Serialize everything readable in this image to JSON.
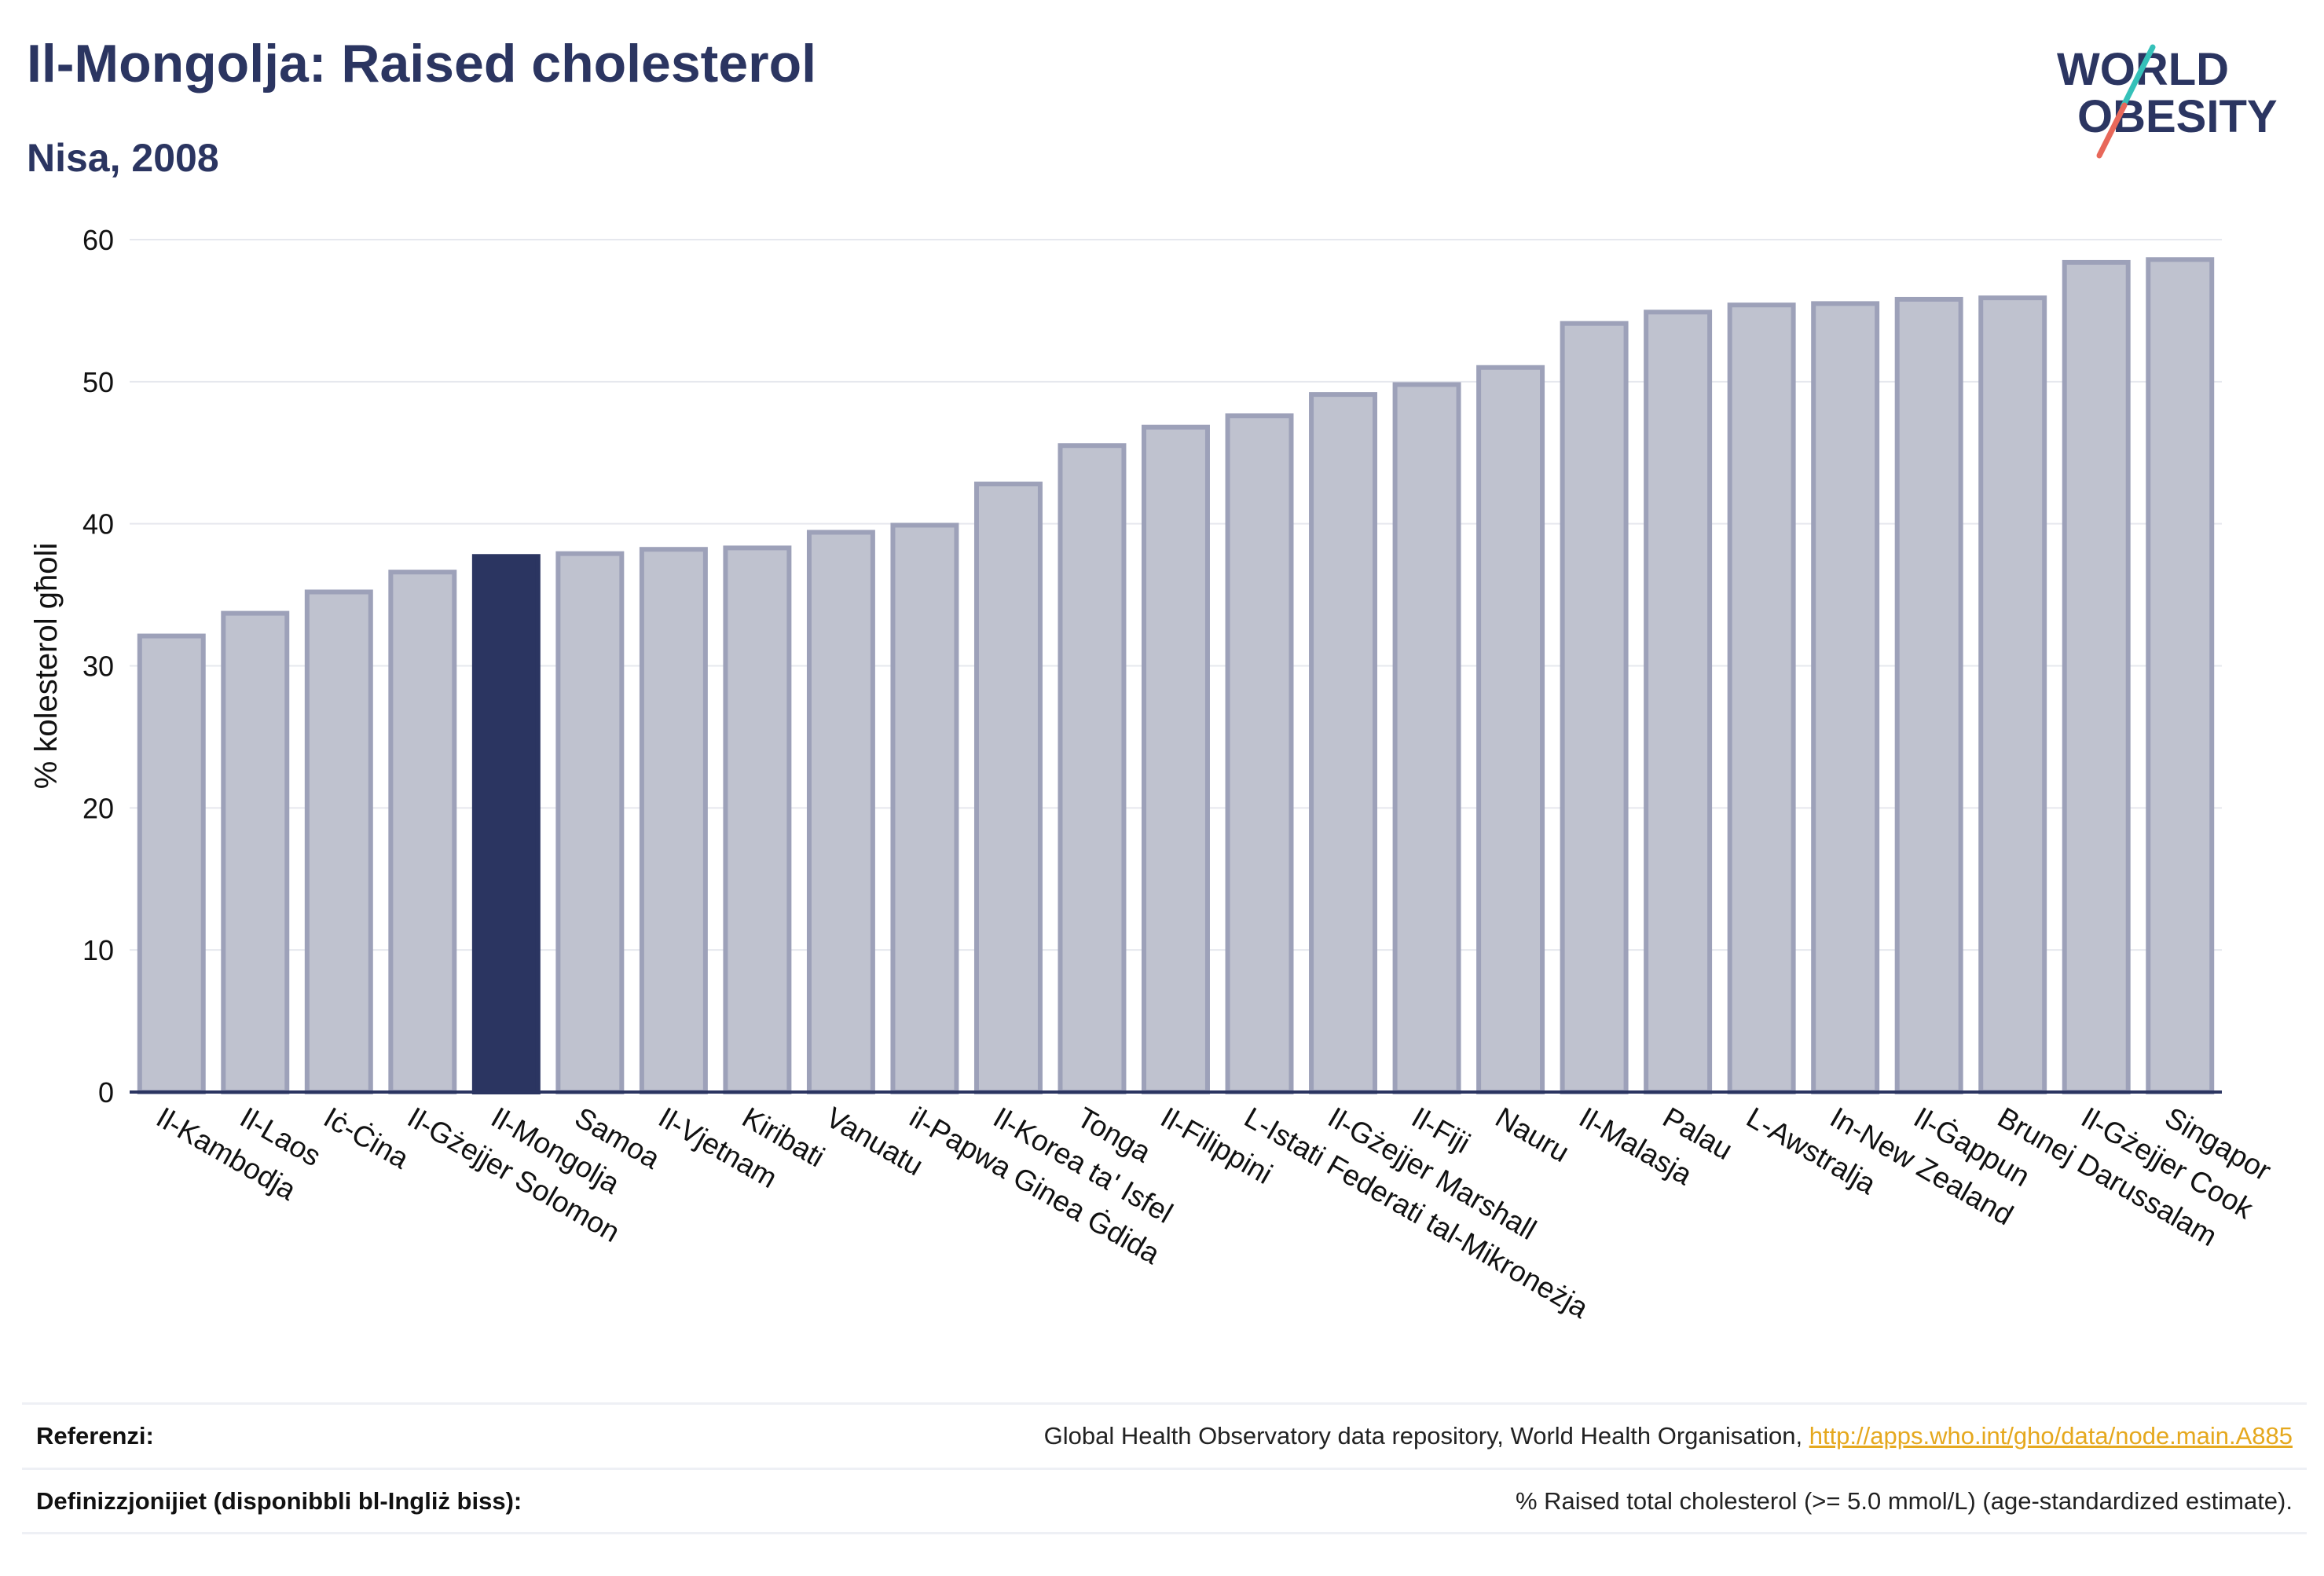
{
  "header": {
    "title": "Il-Mongolja: Raised cholesterol",
    "subtitle": "Nisa, 2008"
  },
  "logo": {
    "line1": "WORLD",
    "line2": "OBESITY"
  },
  "colors": {
    "highlight_bar": "#2b3561",
    "other_bar": "#bfc2cf",
    "bar_border": "#9da1b9",
    "grid": "#e6e8ee",
    "link": "#e5a81e"
  },
  "chart_data": {
    "type": "bar",
    "ylabel": "% kolesterol għoli",
    "ylim": [
      0,
      60
    ],
    "yticks": [
      0,
      10,
      20,
      30,
      40,
      50,
      60
    ],
    "grid": true,
    "highlight": "Il-Mongolja",
    "categories": [
      "Il-Kambodja",
      "Il-Laos",
      "Iċ-Ċina",
      "Il-Gżejjer Solomon",
      "Il-Mongolja",
      "Samoa",
      "Il-Vjetnam",
      "Kiribati",
      "Vanuatu",
      "il-Papwa Ginea Ġdida",
      "Il-Korea ta' Isfel",
      "Tonga",
      "Il-Filippini",
      "L-Istati Federati tal-Mikroneżja",
      "Il-Gżejjer Marshall",
      "Il-Fiji",
      "Nauru",
      "Il-Malasja",
      "Palau",
      "L-Awstralja",
      "In-New Zealand",
      "Il-Ġappun",
      "Brunej Darussalam",
      "Il-Gżejjer Cook",
      "Singapor"
    ],
    "values": [
      32.1,
      33.7,
      35.2,
      36.6,
      37.7,
      37.9,
      38.2,
      38.3,
      39.4,
      39.9,
      42.8,
      45.5,
      46.8,
      47.6,
      49.1,
      49.8,
      51.0,
      54.1,
      54.9,
      55.4,
      55.5,
      55.8,
      55.9,
      58.4,
      58.6
    ]
  },
  "footer": {
    "references_label": "Referenzi:",
    "references_text": "Global Health Observatory data repository, World Health Organisation, ",
    "references_link": "http://apps.who.int/gho/data/node.main.A885",
    "definitions_label": "Definizzjonijiet (disponibbli bl-Ingliż biss):",
    "definitions_text": "% Raised total cholesterol (>= 5.0 mmol/L) (age-standardized estimate)."
  }
}
